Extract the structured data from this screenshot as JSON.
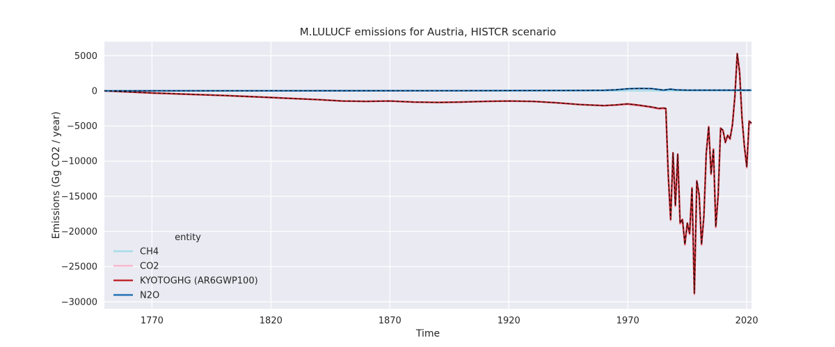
{
  "chart_data": {
    "type": "line",
    "title": "M.LULUCF emissions for Austria, HISTCR scenario",
    "xlabel": "Time",
    "ylabel": "Emissions (Gg CO2 / year)",
    "xlim": [
      1750,
      2022
    ],
    "ylim": [
      -31000,
      7000
    ],
    "xticks": [
      1770,
      1820,
      1870,
      1920,
      1970,
      2020
    ],
    "yticks": [
      5000,
      0,
      -5000,
      -10000,
      -15000,
      -20000,
      -25000,
      -30000
    ],
    "grid": true,
    "legend": {
      "title": "entity",
      "placement": "lower-left"
    },
    "series": [
      {
        "name": "CH4",
        "color": "#a6dce8",
        "x": [
          1750,
          1960,
          1965,
          1970,
          1975,
          1980,
          1985,
          1990,
          1995,
          2000,
          2005,
          2010,
          2015,
          2020,
          2022
        ],
        "y": [
          0,
          0,
          5,
          10,
          12,
          12,
          10,
          8,
          8,
          8,
          8,
          8,
          8,
          8,
          8
        ]
      },
      {
        "name": "CO2",
        "color": "#f7b6cc",
        "x": [
          1750,
          1760,
          1770,
          1780,
          1790,
          1800,
          1810,
          1820,
          1830,
          1840,
          1850,
          1860,
          1870,
          1880,
          1890,
          1900,
          1910,
          1920,
          1930,
          1940,
          1950,
          1960,
          1965,
          1970,
          1975,
          1980,
          1983,
          1985,
          1986,
          1987,
          1988,
          1989,
          1990,
          1991,
          1992,
          1993,
          1994,
          1995,
          1996,
          1997,
          1998,
          1999,
          2000,
          2001,
          2002,
          2003,
          2004,
          2005,
          2006,
          2007,
          2008,
          2009,
          2010,
          2011,
          2012,
          2013,
          2014,
          2015,
          2016,
          2017,
          2018,
          2019,
          2020,
          2021,
          2022
        ],
        "y": [
          0,
          -150,
          -300,
          -420,
          -540,
          -660,
          -800,
          -950,
          -1100,
          -1250,
          -1450,
          -1500,
          -1450,
          -1600,
          -1650,
          -1600,
          -1500,
          -1450,
          -1500,
          -1700,
          -1950,
          -2100,
          -2050,
          -1950,
          -2150,
          -2400,
          -2600,
          -2600,
          -2600,
          -12000,
          -18500,
          -9000,
          -16500,
          -9200,
          -19000,
          -18500,
          -22000,
          -19000,
          -20500,
          -14000,
          -29000,
          -13000,
          -15000,
          -22000,
          -18000,
          -9000,
          -5300,
          -12000,
          -8500,
          -19500,
          -15000,
          -5500,
          -5800,
          -7500,
          -6500,
          -7000,
          -5000,
          -1000,
          5100,
          2500,
          -4000,
          -8000,
          -11000,
          -4500,
          -4800
        ]
      },
      {
        "name": "KYOTOGHG (AR6GWP100)",
        "color": "#c0282e",
        "x": [
          1750,
          1760,
          1770,
          1780,
          1790,
          1800,
          1810,
          1820,
          1830,
          1840,
          1850,
          1860,
          1870,
          1880,
          1890,
          1900,
          1910,
          1920,
          1930,
          1940,
          1950,
          1960,
          1965,
          1970,
          1975,
          1980,
          1983,
          1985,
          1986,
          1987,
          1988,
          1989,
          1990,
          1991,
          1992,
          1993,
          1994,
          1995,
          1996,
          1997,
          1998,
          1999,
          2000,
          2001,
          2002,
          2003,
          2004,
          2005,
          2006,
          2007,
          2008,
          2009,
          2010,
          2011,
          2012,
          2013,
          2014,
          2015,
          2016,
          2017,
          2018,
          2019,
          2020,
          2021,
          2022
        ],
        "y": [
          0,
          -150,
          -300,
          -420,
          -540,
          -660,
          -800,
          -950,
          -1100,
          -1250,
          -1450,
          -1500,
          -1450,
          -1600,
          -1650,
          -1600,
          -1500,
          -1450,
          -1500,
          -1700,
          -1950,
          -2100,
          -2000,
          -1850,
          -2050,
          -2300,
          -2500,
          -2450,
          -2500,
          -11800,
          -18300,
          -8800,
          -16300,
          -9000,
          -18800,
          -18300,
          -21800,
          -18800,
          -20300,
          -13800,
          -28800,
          -12800,
          -14800,
          -21800,
          -17800,
          -8800,
          -5100,
          -11800,
          -8300,
          -19300,
          -14800,
          -5300,
          -5600,
          -7300,
          -6300,
          -6800,
          -4800,
          -800,
          5300,
          2700,
          -3800,
          -7800,
          -10800,
          -4300,
          -4600
        ]
      },
      {
        "name": "N2O",
        "color": "#2271b5",
        "x": [
          1750,
          1900,
          1950,
          1960,
          1965,
          1970,
          1975,
          1980,
          1983,
          1985,
          1986,
          1987,
          1988,
          1990,
          1995,
          2000,
          2010,
          2020,
          2022
        ],
        "y": [
          0,
          20,
          60,
          80,
          150,
          300,
          350,
          320,
          200,
          100,
          150,
          200,
          250,
          150,
          100,
          100,
          100,
          100,
          100
        ]
      }
    ]
  }
}
